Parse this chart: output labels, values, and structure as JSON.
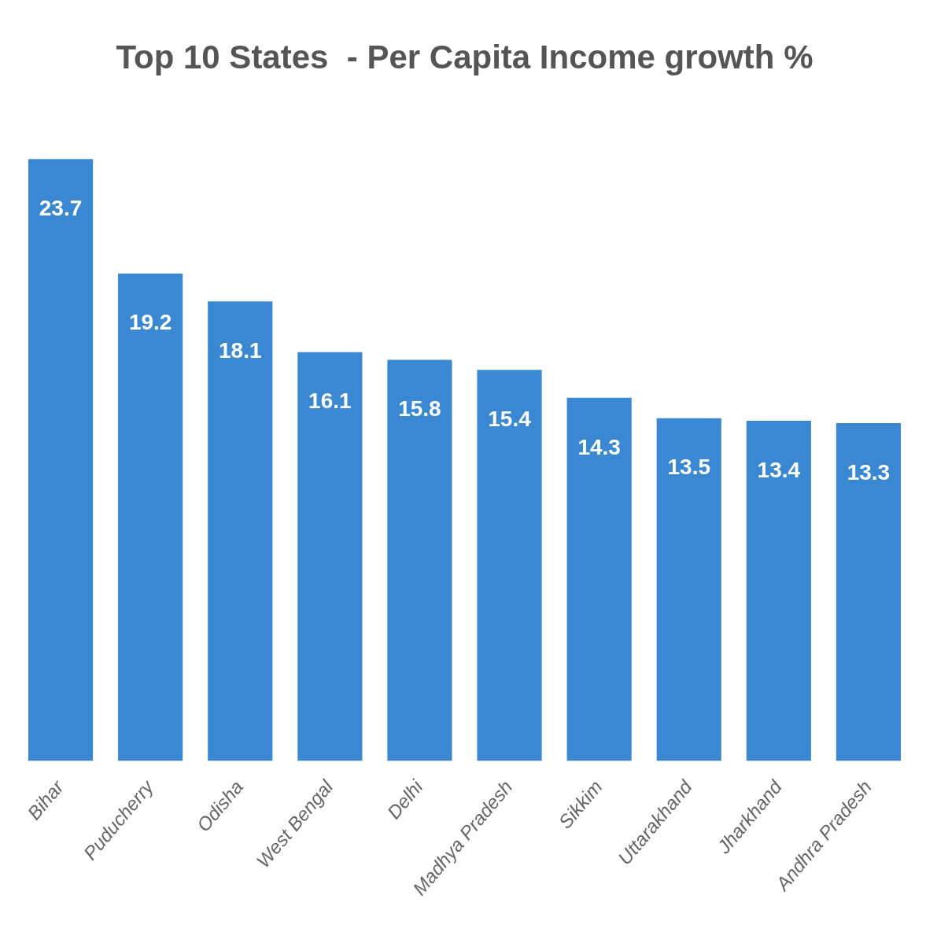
{
  "chart_data": {
    "type": "bar",
    "title": "Top 10 States  - Per Capita Income growth %",
    "categories": [
      "Bihar",
      "Puducherry",
      "Odisha",
      "West Bengal",
      "Delhi",
      "Madhya Pradesh",
      "Sikkim",
      "Uttarakhand",
      "Jharkhand",
      "Andhra Pradesh"
    ],
    "values": [
      23.7,
      19.2,
      18.1,
      16.1,
      15.8,
      15.4,
      14.3,
      13.5,
      13.4,
      13.3
    ],
    "color": "#3a88d2",
    "data_labels": true,
    "grid": false
  }
}
